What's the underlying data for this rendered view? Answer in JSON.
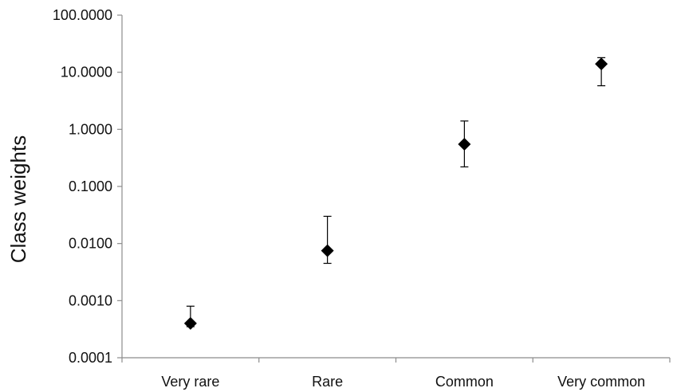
{
  "chart_data": {
    "type": "scatter",
    "title": "",
    "xlabel": "",
    "ylabel": "Class weights",
    "y_scale": "log",
    "ylim": [
      0.0001,
      100
    ],
    "grid": false,
    "legend": "none",
    "categories": [
      "Very rare",
      "Rare",
      "Common",
      "Very common"
    ],
    "y_tick_values": [
      0.0001,
      0.001,
      0.01,
      0.1,
      1,
      10,
      100
    ],
    "y_tick_labels": [
      "0.0001",
      "0.0010",
      "0.0100",
      "0.1000",
      "1.0000",
      "10.0000",
      "100.0000"
    ],
    "series": [
      {
        "values": [
          0.0004,
          0.0075,
          0.55,
          14
        ],
        "error_low": [
          0.00035,
          0.0045,
          0.22,
          5.8
        ],
        "error_high": [
          0.0008,
          0.03,
          1.4,
          18
        ]
      }
    ],
    "colors": {
      "marker": "#000000",
      "axis": "#8c8c8c",
      "text": "#111111"
    }
  }
}
